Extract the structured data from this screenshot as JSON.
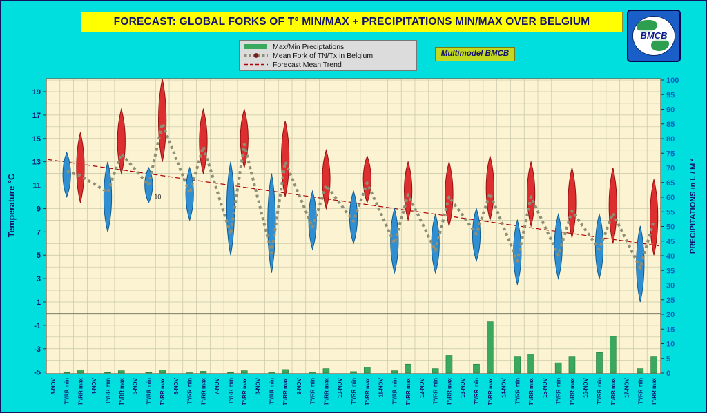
{
  "title": "FORECAST: GLOBAL FORKS OF T° MIN/MAX + PRECIPITATIONS MIN/MAX OVER  BELGIUM",
  "badge": "Multimodel BMCB",
  "logo_text": "BMCB",
  "legend": {
    "items": [
      {
        "label": "Max/Min Preciptations",
        "swatch": "green-bar"
      },
      {
        "label": "Mean Fork of TN/Tx in Belgium",
        "swatch": "gray-dotted-with-red-dot"
      },
      {
        "label": "Forecast Mean Trend",
        "swatch": "red-dashed"
      }
    ]
  },
  "colors": {
    "bg-cyan": "#00dede",
    "title-yellow": "#ffff00",
    "navy": "#14146e",
    "plot-cream": "#fbf3d1",
    "grid": "#c6c6a8",
    "bar-green": "#3aa95e",
    "bar-green-dark": "#1f7a3f",
    "fork-blue": "#2f8fd2",
    "fork-blue-dark": "#0f5c91",
    "fork-red": "#dd2f2f",
    "fork-red-dark": "#951212",
    "mean-gray": "#8f8f76",
    "trend-red": "#b00000",
    "precip-blue": "#0b62c1",
    "badge-green": "#c3d821",
    "logo-blue": "#1a5fc8",
    "land-green": "#2e9e4f"
  },
  "chart_data": {
    "type": "composite",
    "description": "Per-day forecast forks: blue spindle = range of T min forecasts, red spindle = range of T max forecasts, thick gray dotted line = mean TN/Tx zigzag, thin red dashed = mean trend, green bars (bottom panel, right axis) = min/max precipitation.",
    "temp_axis": {
      "label": "Temperature  °C",
      "ticks": [
        19,
        17,
        15,
        13,
        11,
        9,
        7,
        5,
        3,
        1,
        -1,
        -3,
        -5
      ],
      "range": [
        -5.6,
        20.2
      ]
    },
    "precip_axis": {
      "label": "PRECIPITATIONS in L / M ²",
      "ticks": [
        100,
        95,
        90,
        85,
        80,
        75,
        70,
        65,
        60,
        55,
        50,
        45,
        40,
        35,
        30,
        25,
        20,
        15,
        10,
        5,
        0
      ],
      "range": [
        0,
        100
      ]
    },
    "col_labels": {
      "min": "T°/RR min",
      "max": "T°/RR max"
    },
    "trend": {
      "start": 13.2,
      "end": 5.8
    },
    "annotation": {
      "day_index": 2,
      "value": 10,
      "text": "10"
    },
    "days": [
      {
        "date": "3-NOV",
        "tmin_fork": [
          10.0,
          13.8
        ],
        "tmin_mean": 12.2,
        "tmax_fork": [
          9.5,
          15.5
        ],
        "tmax_mean": 11.8,
        "precip_min": 0.2,
        "precip_max": 1.0
      },
      {
        "date": "4-NOV",
        "tmin_fork": [
          7.0,
          13.0
        ],
        "tmin_mean": 10.4,
        "tmax_fork": [
          12.0,
          17.5
        ],
        "tmax_mean": 13.7,
        "precip_min": 0.2,
        "precip_max": 0.8
      },
      {
        "date": "5-NOV",
        "tmin_fork": [
          9.5,
          12.5
        ],
        "tmin_mean": 11.0,
        "tmax_fork": [
          13.0,
          20.1
        ],
        "tmax_mean": 16.3,
        "precip_min": 0.2,
        "precip_max": 1.0
      },
      {
        "date": "6-NOV",
        "tmin_fork": [
          8.0,
          12.5
        ],
        "tmin_mean": 10.3,
        "tmax_fork": [
          12.0,
          17.5
        ],
        "tmax_mean": 14.3,
        "precip_min": 0.1,
        "precip_max": 0.6
      },
      {
        "date": "7-NOV",
        "tmin_fork": [
          5.0,
          13.0
        ],
        "tmin_mean": 6.8,
        "tmax_fork": [
          12.5,
          17.5
        ],
        "tmax_mean": 14.5,
        "precip_min": 0.2,
        "precip_max": 0.8
      },
      {
        "date": "8-NOV",
        "tmin_fork": [
          3.5,
          12.0
        ],
        "tmin_mean": 5.2,
        "tmax_fork": [
          10.0,
          16.5
        ],
        "tmax_mean": 13.0,
        "precip_min": 0.3,
        "precip_max": 1.2
      },
      {
        "date": "9-NOV",
        "tmin_fork": [
          5.5,
          10.5
        ],
        "tmin_mean": 7.4,
        "tmax_fork": [
          9.0,
          14.0
        ],
        "tmax_mean": 11.0,
        "precip_min": 0.3,
        "precip_max": 1.5
      },
      {
        "date": "10-NOV",
        "tmin_fork": [
          6.0,
          10.5
        ],
        "tmin_mean": 7.9,
        "tmax_fork": [
          9.5,
          13.5
        ],
        "tmax_mean": 11.2,
        "precip_min": 0.5,
        "precip_max": 2.0
      },
      {
        "date": "11-NOV",
        "tmin_fork": [
          3.5,
          9.0
        ],
        "tmin_mean": 6.0,
        "tmax_fork": [
          8.0,
          13.0
        ],
        "tmax_mean": 10.2,
        "precip_min": 0.8,
        "precip_max": 3.0
      },
      {
        "date": "12-NOV",
        "tmin_fork": [
          3.5,
          8.5
        ],
        "tmin_mean": 5.4,
        "tmax_fork": [
          7.5,
          13.0
        ],
        "tmax_mean": 10.0,
        "precip_min": 1.5,
        "precip_max": 6.0
      },
      {
        "date": "13-NOV",
        "tmin_fork": [
          4.5,
          9.0
        ],
        "tmin_mean": 6.8,
        "tmax_fork": [
          8.0,
          13.5
        ],
        "tmax_mean": 10.3,
        "precip_min": 3.0,
        "precip_max": 17.5
      },
      {
        "date": "14-NOV",
        "tmin_fork": [
          2.5,
          8.0
        ],
        "tmin_mean": 4.5,
        "tmax_fork": [
          7.5,
          13.0
        ],
        "tmax_mean": 10.0,
        "precip_min": 5.5,
        "precip_max": 6.5
      },
      {
        "date": "15-NOV",
        "tmin_fork": [
          3.0,
          8.5
        ],
        "tmin_mean": 5.0,
        "tmax_fork": [
          6.5,
          12.5
        ],
        "tmax_mean": 8.8,
        "precip_min": 3.5,
        "precip_max": 5.5
      },
      {
        "date": "16-NOV",
        "tmin_fork": [
          3.0,
          8.5
        ],
        "tmin_mean": 5.5,
        "tmax_fork": [
          6.0,
          12.5
        ],
        "tmax_mean": 8.6,
        "precip_min": 7.0,
        "precip_max": 12.5
      },
      {
        "date": "17-NOV",
        "tmin_fork": [
          1.0,
          7.5
        ],
        "tmin_mean": 3.9,
        "tmax_fork": [
          5.0,
          11.5
        ],
        "tmax_mean": 8.0,
        "precip_min": 1.5,
        "precip_max": 5.5
      }
    ]
  }
}
